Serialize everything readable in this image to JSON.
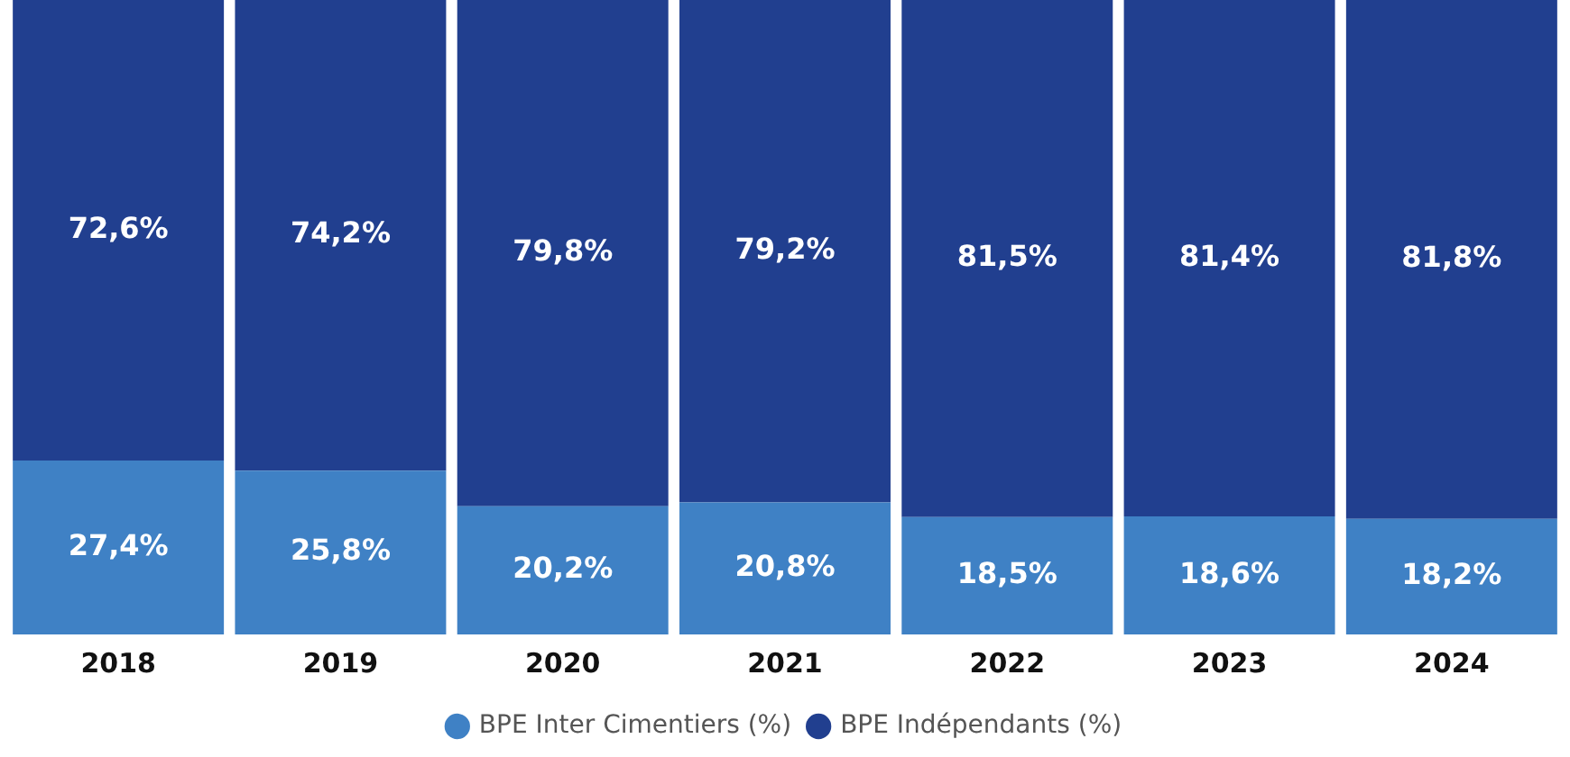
{
  "chart_data": {
    "type": "bar",
    "stacked": true,
    "categories": [
      "2018",
      "2019",
      "2020",
      "2021",
      "2022",
      "2023",
      "2024"
    ],
    "series": [
      {
        "name": "BPE Inter Cimentiers (%)",
        "color": "#3f81c5",
        "values": [
          27.4,
          25.8,
          20.2,
          20.8,
          18.5,
          18.6,
          18.2
        ],
        "value_labels": [
          "27,4%",
          "25,8%",
          "20,2%",
          "20,8%",
          "18,5%",
          "18,6%",
          "18,2%"
        ]
      },
      {
        "name": "BPE Indépendants (%)",
        "color": "#213f8f",
        "values": [
          72.6,
          74.2,
          79.8,
          79.2,
          81.5,
          81.4,
          81.8
        ],
        "value_labels": [
          "72,6%",
          "74,2%",
          "79,8%",
          "79,2%",
          "81,5%",
          "81,4%",
          "81,8%"
        ]
      }
    ],
    "ylim": [
      0,
      100
    ],
    "tick_labels": "x",
    "grid": false,
    "legend": "bottom"
  }
}
